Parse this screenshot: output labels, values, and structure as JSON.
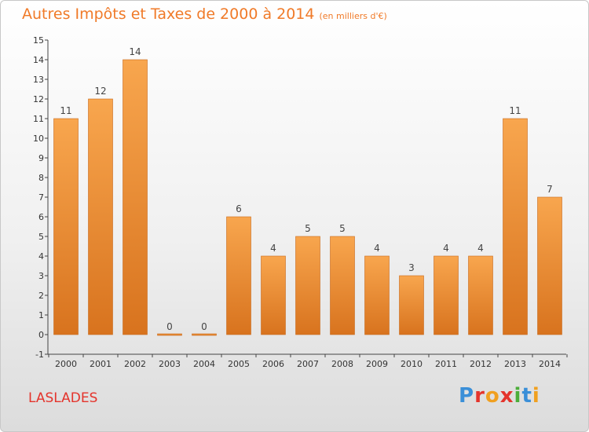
{
  "header": {
    "title": "Autres Impôts et Taxes de 2000 à 2014",
    "subtitle": "(en milliers d'€)"
  },
  "footer": {
    "town": "LASLADES",
    "logo_text": "Proxiti"
  },
  "colors": {
    "bar_light": "#f8a64e",
    "bar_dark": "#d8731e",
    "title": "#f07a28",
    "town": "#e4342c",
    "logo": [
      "#3a8fd8",
      "#e4342c",
      "#f0a020",
      "#e4342c",
      "#4cae3a",
      "#3a8fd8",
      "#f0a020"
    ]
  },
  "chart_data": {
    "type": "bar",
    "categories": [
      "2000",
      "2001",
      "2002",
      "2003",
      "2004",
      "2005",
      "2006",
      "2007",
      "2008",
      "2009",
      "2010",
      "2011",
      "2012",
      "2013",
      "2014"
    ],
    "values": [
      11,
      12,
      14,
      0,
      0,
      6,
      4,
      5,
      5,
      4,
      3,
      4,
      4,
      11,
      7
    ],
    "title": "Autres Impôts et Taxes de 2000 à 2014",
    "xlabel": "",
    "ylabel": "",
    "ylim": [
      -1,
      15
    ],
    "yticks": [
      -1,
      0,
      1,
      2,
      3,
      4,
      5,
      6,
      7,
      8,
      9,
      10,
      11,
      12,
      13,
      14,
      15
    ],
    "grid": false,
    "legend": "none"
  }
}
